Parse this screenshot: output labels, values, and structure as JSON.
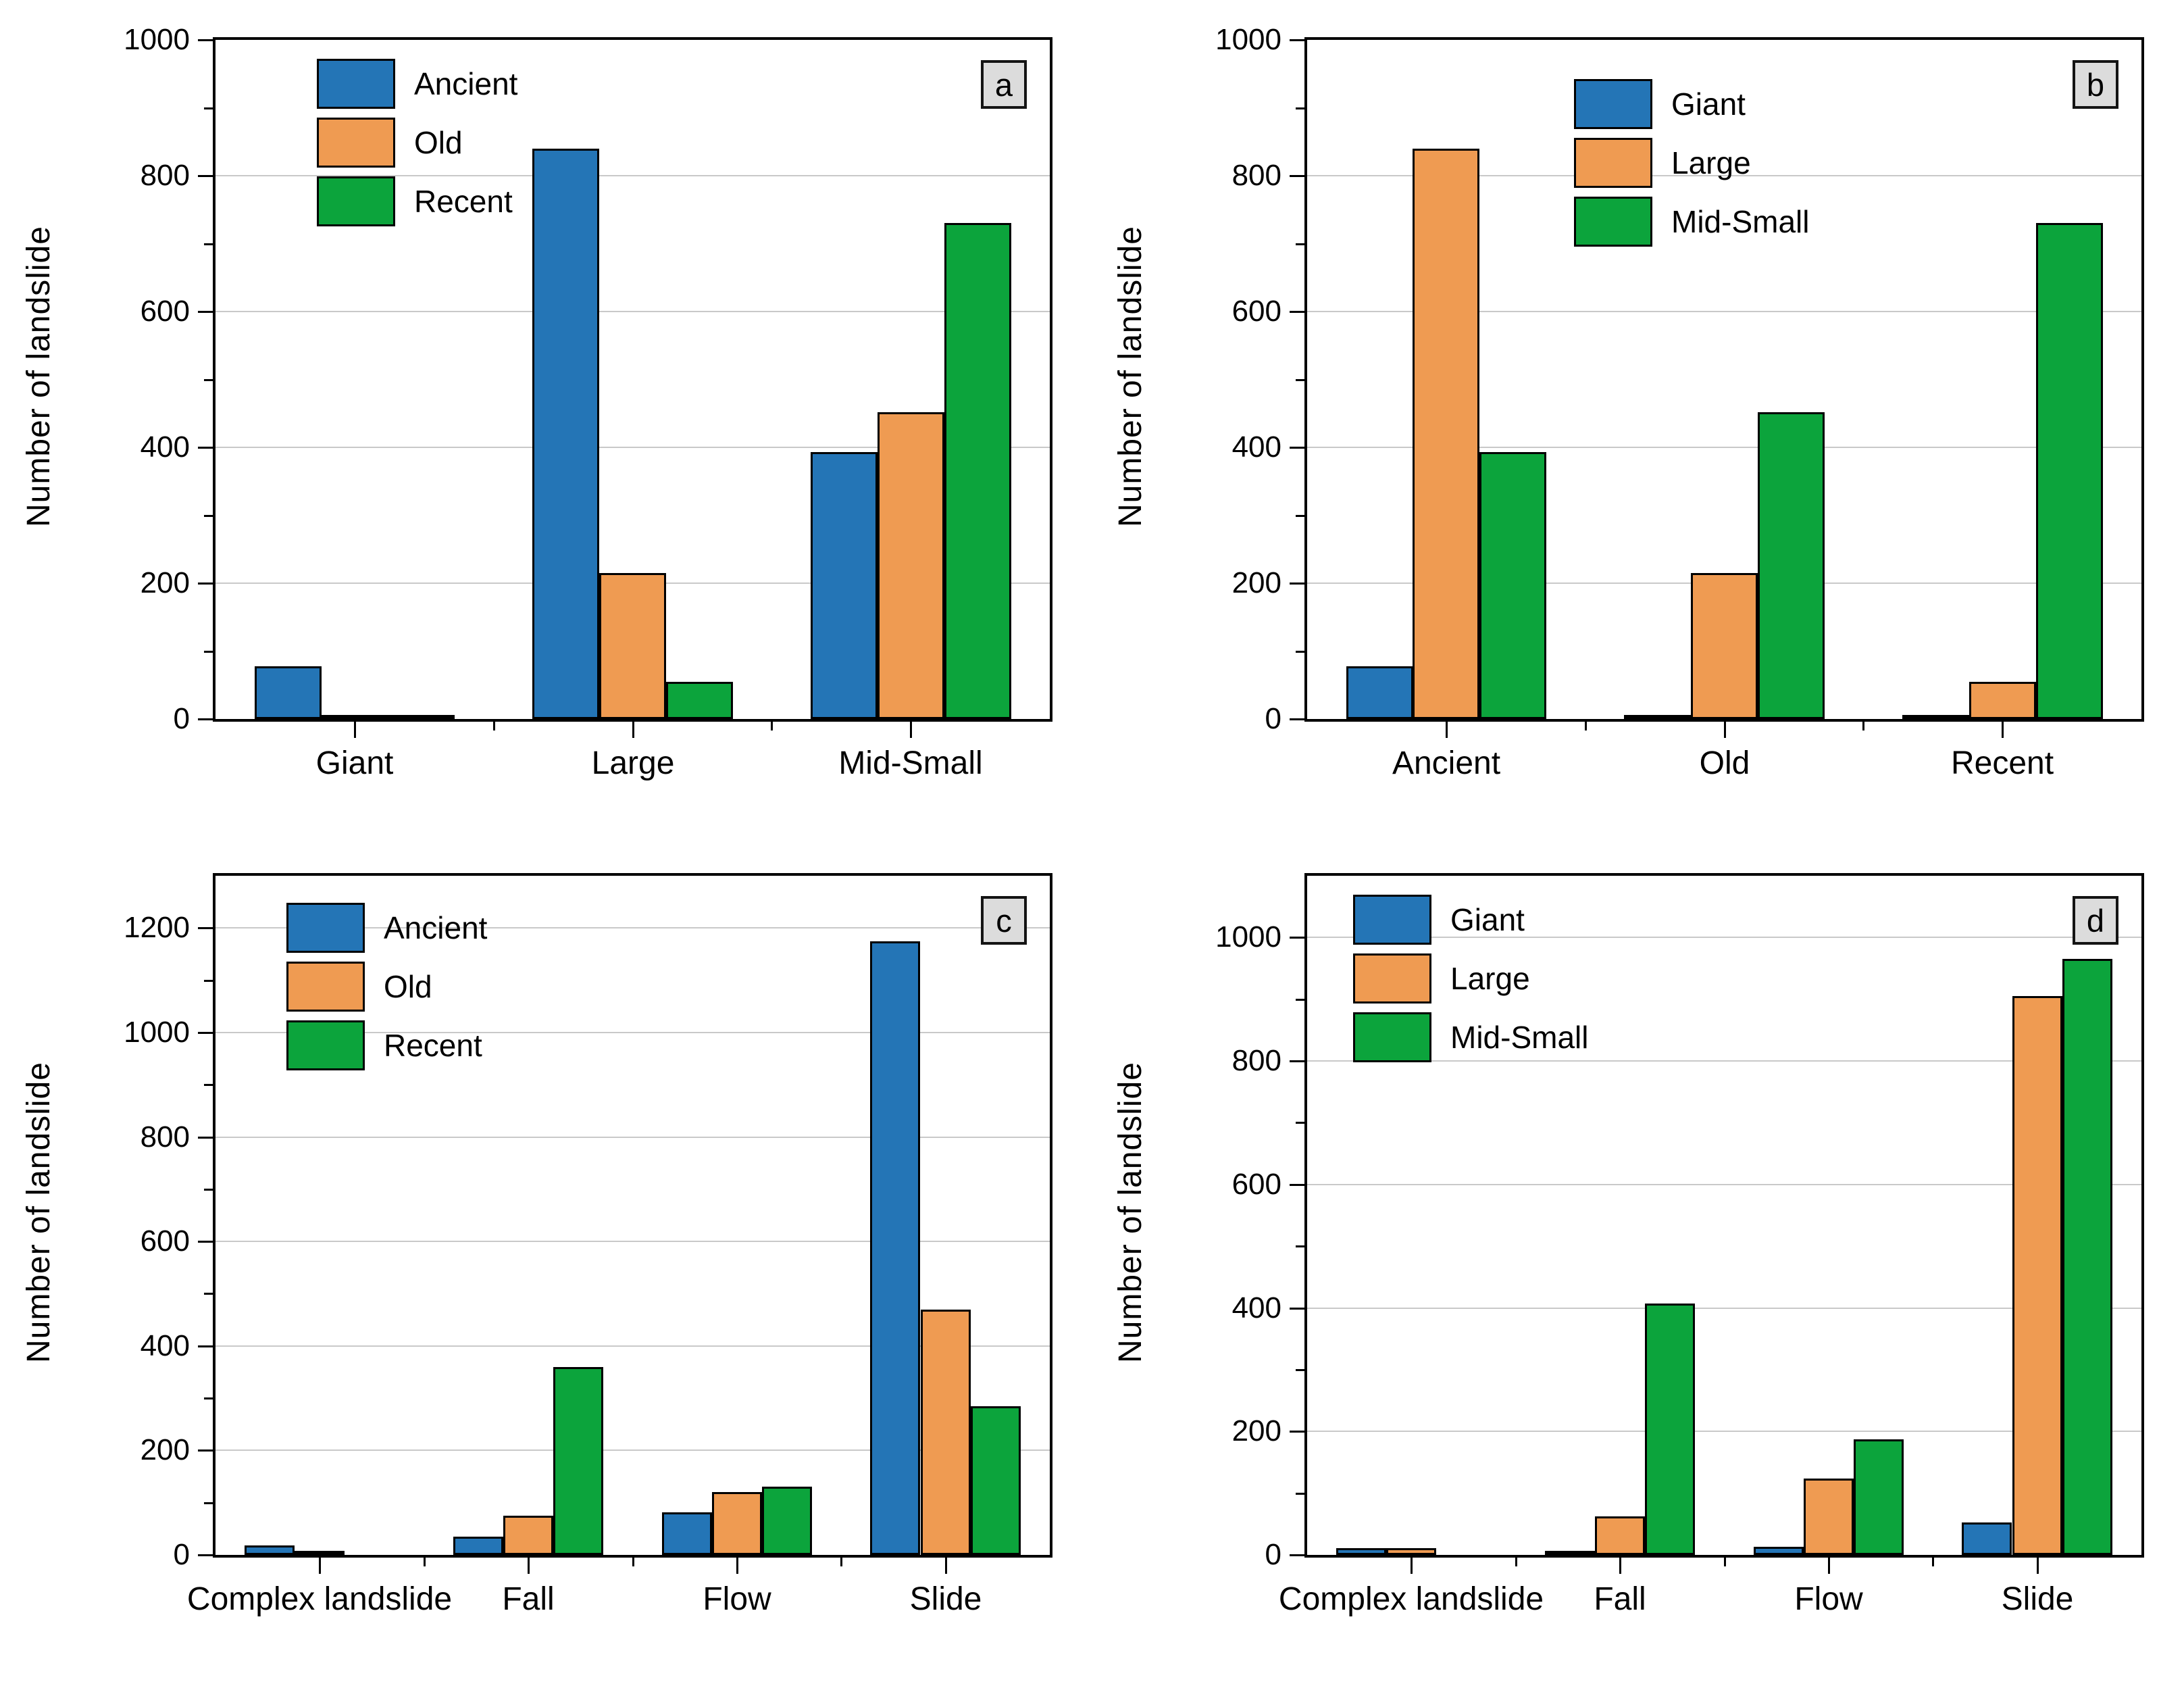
{
  "figure": {
    "ylabel": "Number of landslide",
    "colors": {
      "series_blue": "#2475B6",
      "series_orange": "#EF9B52",
      "series_green": "#0CA43C",
      "bar_border": "#000000",
      "grid": "#C9C9C9",
      "axis": "#000000",
      "badge_bg": "#DCDCDC",
      "badge_border": "#141414",
      "background": "#FFFFFF"
    }
  },
  "chart_data": [
    {
      "id": "a",
      "type": "bar",
      "badge": "a",
      "title": "",
      "ylabel": "Number of landslide",
      "xlabel": "",
      "categories": [
        "Giant",
        "Large",
        "Mid-Small"
      ],
      "series": [
        {
          "name": "Ancient",
          "color": "#2475B6",
          "values": [
            78,
            840,
            393
          ]
        },
        {
          "name": "Old",
          "color": "#EF9B52",
          "values": [
            3,
            215,
            452
          ]
        },
        {
          "name": "Recent",
          "color": "#0CA43C",
          "values": [
            2,
            55,
            730
          ]
        }
      ],
      "ylim": [
        0,
        1000
      ],
      "ytick_major": 200,
      "ytick_minor": 100,
      "yticks": [
        0,
        200,
        400,
        600,
        800,
        1000
      ],
      "grid": "horizontal-major",
      "legend_position": "top-left-inside",
      "legend_pos": {
        "x": 150,
        "y": 28
      }
    },
    {
      "id": "b",
      "type": "bar",
      "badge": "b",
      "title": "",
      "ylabel": "Number of landslide",
      "xlabel": "",
      "categories": [
        "Ancient",
        "Old",
        "Recent"
      ],
      "series": [
        {
          "name": "Giant",
          "color": "#2475B6",
          "values": [
            78,
            3,
            2
          ]
        },
        {
          "name": "Large",
          "color": "#EF9B52",
          "values": [
            840,
            215,
            55
          ]
        },
        {
          "name": "Mid-Small",
          "color": "#0CA43C",
          "values": [
            393,
            452,
            730
          ]
        }
      ],
      "ylim": [
        0,
        1000
      ],
      "ytick_major": 200,
      "ytick_minor": 100,
      "yticks": [
        0,
        200,
        400,
        600,
        800,
        1000
      ],
      "grid": "horizontal-major",
      "legend_position": "top-center-inside",
      "legend_pos": {
        "x": 395,
        "y": 58
      }
    },
    {
      "id": "c",
      "type": "bar",
      "badge": "c",
      "title": "",
      "ylabel": "Number of landslide",
      "xlabel": "",
      "categories": [
        "Complex landslide",
        "Fall",
        "Flow",
        "Slide"
      ],
      "series": [
        {
          "name": "Ancient",
          "color": "#2475B6",
          "values": [
            18,
            35,
            82,
            1175
          ]
        },
        {
          "name": "Old",
          "color": "#EF9B52",
          "values": [
            2,
            75,
            120,
            470
          ]
        },
        {
          "name": "Recent",
          "color": "#0CA43C",
          "values": [
            0,
            360,
            130,
            285
          ]
        }
      ],
      "ylim": [
        0,
        1300
      ],
      "ytick_major": 200,
      "ytick_minor": 100,
      "yticks": [
        0,
        200,
        400,
        600,
        800,
        1000,
        1200
      ],
      "grid": "horizontal-major",
      "legend_position": "top-left-inside",
      "legend_pos": {
        "x": 105,
        "y": 40
      }
    },
    {
      "id": "d",
      "type": "bar",
      "badge": "d",
      "title": "",
      "ylabel": "Number of landslide",
      "xlabel": "",
      "categories": [
        "Complex landslide",
        "Fall",
        "Flow",
        "Slide"
      ],
      "series": [
        {
          "name": "Giant",
          "color": "#2475B6",
          "values": [
            11,
            2,
            13,
            53
          ]
        },
        {
          "name": "Large",
          "color": "#EF9B52",
          "values": [
            11,
            62,
            124,
            905
          ]
        },
        {
          "name": "Mid-Small",
          "color": "#0CA43C",
          "values": [
            0,
            407,
            187,
            965
          ]
        }
      ],
      "ylim": [
        0,
        1100
      ],
      "ytick_major": 200,
      "ytick_minor": 100,
      "yticks": [
        0,
        200,
        400,
        600,
        800,
        1000
      ],
      "grid": "horizontal-major",
      "legend_position": "top-left-inside",
      "legend_pos": {
        "x": 68,
        "y": 28
      }
    }
  ]
}
